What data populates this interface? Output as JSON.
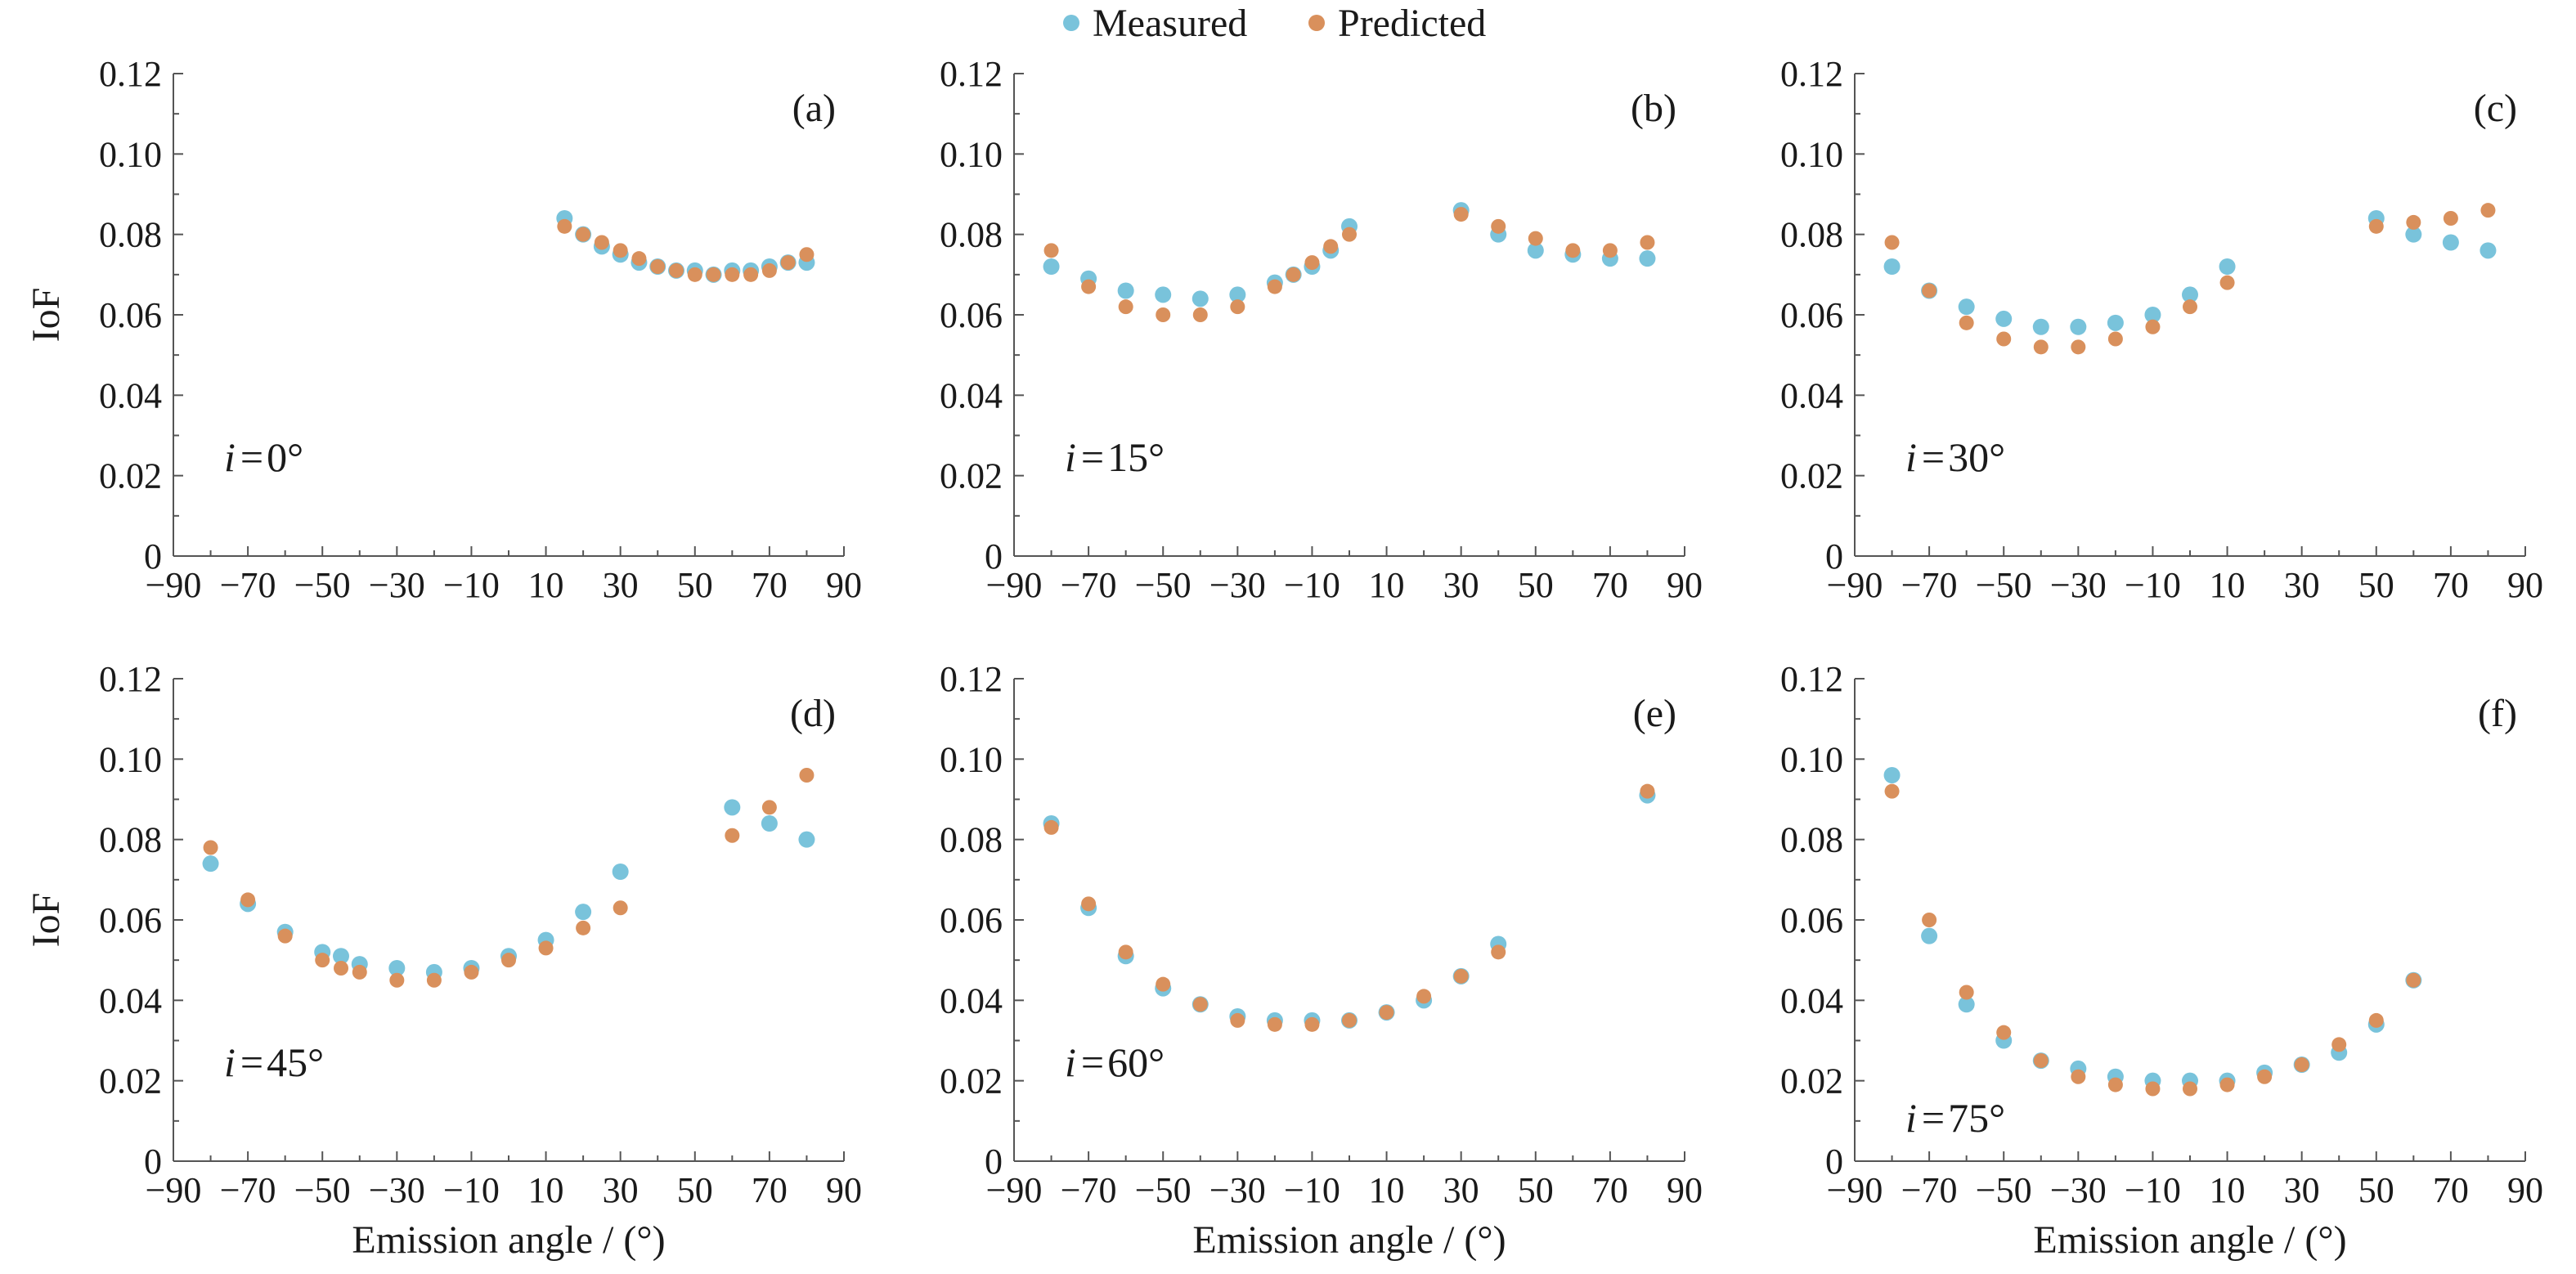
{
  "legend": [
    {
      "name": "Measured",
      "color": "#79c3db"
    },
    {
      "name": "Predicted",
      "color": "#d9905c"
    }
  ],
  "chart_data": [
    {
      "type": "scatter",
      "panel_label": "(a)",
      "inc_label": "0°",
      "xlabel": "",
      "ylabel": "IoF",
      "xlim": [
        -90,
        90
      ],
      "ylim": [
        0,
        0.12
      ],
      "xticks": [
        "−90",
        "−70",
        "−50",
        "−30",
        "−10",
        "10",
        "30",
        "50",
        "70",
        "90"
      ],
      "yticks": [
        "0",
        "0.02",
        "0.04",
        "0.06",
        "0.08",
        "0.10",
        "0.12"
      ],
      "series": [
        {
          "name": "Measured",
          "x": [
            15,
            20,
            25,
            30,
            35,
            40,
            45,
            50,
            55,
            60,
            65,
            70,
            75,
            80
          ],
          "y": [
            0.084,
            0.08,
            0.077,
            0.075,
            0.073,
            0.072,
            0.071,
            0.071,
            0.07,
            0.071,
            0.071,
            0.072,
            0.073,
            0.073
          ]
        },
        {
          "name": "Predicted",
          "x": [
            15,
            20,
            25,
            30,
            35,
            40,
            45,
            50,
            55,
            60,
            65,
            70,
            75,
            80
          ],
          "y": [
            0.082,
            0.08,
            0.078,
            0.076,
            0.074,
            0.072,
            0.071,
            0.07,
            0.07,
            0.07,
            0.07,
            0.071,
            0.073,
            0.075
          ]
        }
      ]
    },
    {
      "type": "scatter",
      "panel_label": "(b)",
      "inc_label": "15°",
      "xlabel": "",
      "ylabel": "",
      "xlim": [
        -90,
        90
      ],
      "ylim": [
        0,
        0.12
      ],
      "xticks": [
        "−90",
        "−70",
        "−50",
        "−30",
        "−10",
        "10",
        "30",
        "50",
        "70",
        "90"
      ],
      "yticks": [
        "0",
        "0.02",
        "0.04",
        "0.06",
        "0.08",
        "0.10",
        "0.12"
      ],
      "series": [
        {
          "name": "Measured",
          "x": [
            -80,
            -70,
            -60,
            -50,
            -40,
            -30,
            -20,
            -15,
            -10,
            -5,
            0,
            30,
            40,
            50,
            60,
            70,
            80
          ],
          "y": [
            0.072,
            0.069,
            0.066,
            0.065,
            0.064,
            0.065,
            0.068,
            0.07,
            0.072,
            0.076,
            0.082,
            0.086,
            0.08,
            0.076,
            0.075,
            0.074,
            0.074
          ]
        },
        {
          "name": "Predicted",
          "x": [
            -80,
            -70,
            -60,
            -50,
            -40,
            -30,
            -20,
            -15,
            -10,
            -5,
            0,
            30,
            40,
            50,
            60,
            70,
            80
          ],
          "y": [
            0.076,
            0.067,
            0.062,
            0.06,
            0.06,
            0.062,
            0.067,
            0.07,
            0.073,
            0.077,
            0.08,
            0.085,
            0.082,
            0.079,
            0.076,
            0.076,
            0.078
          ]
        }
      ]
    },
    {
      "type": "scatter",
      "panel_label": "(c)",
      "inc_label": "30°",
      "xlabel": "",
      "ylabel": "",
      "xlim": [
        -90,
        90
      ],
      "ylim": [
        0,
        0.12
      ],
      "xticks": [
        "−90",
        "−70",
        "−50",
        "−30",
        "−10",
        "10",
        "30",
        "50",
        "70",
        "90"
      ],
      "yticks": [
        "0",
        "0.02",
        "0.04",
        "0.06",
        "0.08",
        "0.10",
        "0.12"
      ],
      "series": [
        {
          "name": "Measured",
          "x": [
            -80,
            -70,
            -60,
            -50,
            -40,
            -30,
            -20,
            -10,
            0,
            10,
            50,
            60,
            70,
            80
          ],
          "y": [
            0.072,
            0.066,
            0.062,
            0.059,
            0.057,
            0.057,
            0.058,
            0.06,
            0.065,
            0.072,
            0.084,
            0.08,
            0.078,
            0.076
          ]
        },
        {
          "name": "Predicted",
          "x": [
            -80,
            -70,
            -60,
            -50,
            -40,
            -30,
            -20,
            -10,
            0,
            10,
            50,
            60,
            70,
            80
          ],
          "y": [
            0.078,
            0.066,
            0.058,
            0.054,
            0.052,
            0.052,
            0.054,
            0.057,
            0.062,
            0.068,
            0.082,
            0.083,
            0.084,
            0.086
          ]
        }
      ]
    },
    {
      "type": "scatter",
      "panel_label": "(d)",
      "inc_label": "45°",
      "xlabel": "Emission angle / (°)",
      "ylabel": "IoF",
      "xlim": [
        -90,
        90
      ],
      "ylim": [
        0,
        0.12
      ],
      "xticks": [
        "−90",
        "−70",
        "−50",
        "−30",
        "−10",
        "10",
        "30",
        "50",
        "70",
        "90"
      ],
      "yticks": [
        "0",
        "0.02",
        "0.04",
        "0.06",
        "0.08",
        "0.10",
        "0.12"
      ],
      "series": [
        {
          "name": "Measured",
          "x": [
            -80,
            -70,
            -60,
            -50,
            -45,
            -40,
            -30,
            -20,
            -10,
            0,
            10,
            20,
            30,
            60,
            70,
            80
          ],
          "y": [
            0.074,
            0.064,
            0.057,
            0.052,
            0.051,
            0.049,
            0.048,
            0.047,
            0.048,
            0.051,
            0.055,
            0.062,
            0.072,
            0.088,
            0.084,
            0.08
          ]
        },
        {
          "name": "Predicted",
          "x": [
            -80,
            -70,
            -60,
            -50,
            -45,
            -40,
            -30,
            -20,
            -10,
            0,
            10,
            20,
            30,
            60,
            70,
            80
          ],
          "y": [
            0.078,
            0.065,
            0.056,
            0.05,
            0.048,
            0.047,
            0.045,
            0.045,
            0.047,
            0.05,
            0.053,
            0.058,
            0.063,
            0.081,
            0.088,
            0.096
          ]
        }
      ]
    },
    {
      "type": "scatter",
      "panel_label": "(e)",
      "inc_label": "60°",
      "xlabel": "Emission angle / (°)",
      "ylabel": "",
      "xlim": [
        -90,
        90
      ],
      "ylim": [
        0,
        0.12
      ],
      "xticks": [
        "−90",
        "−70",
        "−50",
        "−30",
        "−10",
        "10",
        "30",
        "50",
        "70",
        "90"
      ],
      "yticks": [
        "0",
        "0.02",
        "0.04",
        "0.06",
        "0.08",
        "0.10",
        "0.12"
      ],
      "series": [
        {
          "name": "Measured",
          "x": [
            -80,
            -70,
            -60,
            -50,
            -40,
            -30,
            -20,
            -10,
            0,
            10,
            20,
            30,
            40,
            80
          ],
          "y": [
            0.084,
            0.063,
            0.051,
            0.043,
            0.039,
            0.036,
            0.035,
            0.035,
            0.035,
            0.037,
            0.04,
            0.046,
            0.054,
            0.091
          ]
        },
        {
          "name": "Predicted",
          "x": [
            -80,
            -70,
            -60,
            -50,
            -40,
            -30,
            -20,
            -10,
            0,
            10,
            20,
            30,
            40,
            80
          ],
          "y": [
            0.083,
            0.064,
            0.052,
            0.044,
            0.039,
            0.035,
            0.034,
            0.034,
            0.035,
            0.037,
            0.041,
            0.046,
            0.052,
            0.092
          ]
        }
      ]
    },
    {
      "type": "scatter",
      "panel_label": "(f)",
      "inc_label": "75°",
      "xlabel": "Emission angle / (°)",
      "ylabel": "",
      "xlim": [
        -90,
        90
      ],
      "ylim": [
        0,
        0.12
      ],
      "xticks": [
        "−90",
        "−70",
        "−50",
        "−30",
        "−10",
        "10",
        "30",
        "50",
        "70",
        "90"
      ],
      "yticks": [
        "0",
        "0.02",
        "0.04",
        "0.06",
        "0.08",
        "0.10",
        "0.12"
      ],
      "series": [
        {
          "name": "Measured",
          "x": [
            -80,
            -70,
            -60,
            -50,
            -40,
            -30,
            -20,
            -10,
            0,
            10,
            20,
            30,
            40,
            50,
            60
          ],
          "y": [
            0.096,
            0.056,
            0.039,
            0.03,
            0.025,
            0.023,
            0.021,
            0.02,
            0.02,
            0.02,
            0.022,
            0.024,
            0.027,
            0.034,
            0.045
          ]
        },
        {
          "name": "Predicted",
          "x": [
            -80,
            -70,
            -60,
            -50,
            -40,
            -30,
            -20,
            -10,
            0,
            10,
            20,
            30,
            40,
            50,
            60
          ],
          "y": [
            0.092,
            0.06,
            0.042,
            0.032,
            0.025,
            0.021,
            0.019,
            0.018,
            0.018,
            0.019,
            0.021,
            0.024,
            0.029,
            0.035,
            0.045
          ]
        }
      ]
    }
  ]
}
